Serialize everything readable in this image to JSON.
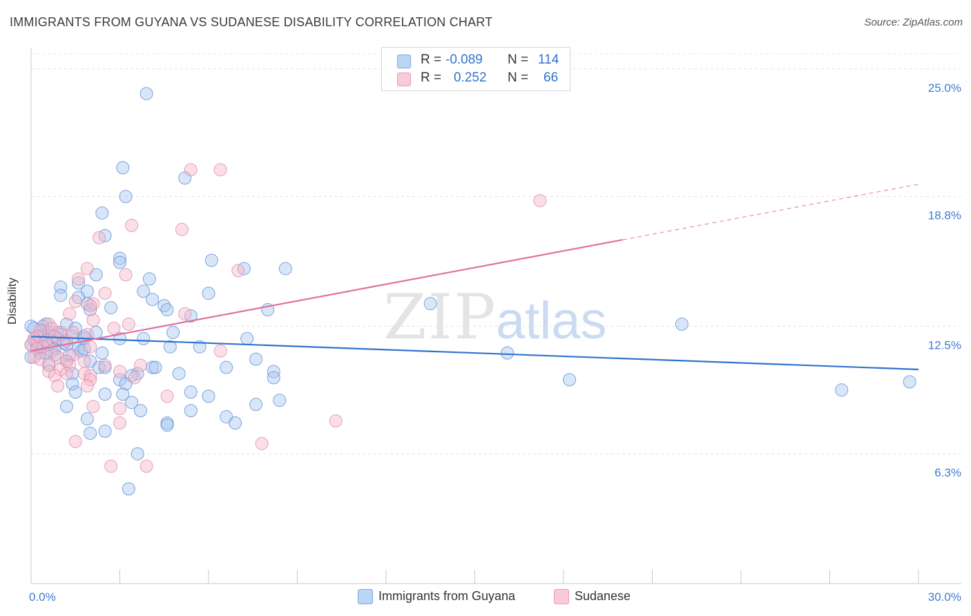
{
  "header": {
    "title": "IMMIGRANTS FROM GUYANA VS SUDANESE DISABILITY CORRELATION CHART",
    "source": "Source: ZipAtlas.com"
  },
  "watermark": {
    "zip": "ZIP",
    "atlas": "atlas"
  },
  "legend": {
    "rows": [
      {
        "r_label": "R =",
        "r_value": "-0.089",
        "n_label": "N =",
        "n_value": "114",
        "color": "#a9c8f0"
      },
      {
        "r_label": "R =",
        "r_value": "0.252",
        "n_label": "N =",
        "n_value": "66",
        "color": "#f5b8cc"
      }
    ]
  },
  "chart_data": {
    "type": "scatter",
    "title": "IMMIGRANTS FROM GUYANA VS SUDANESE DISABILITY CORRELATION CHART",
    "xlabel": "",
    "ylabel": "Disability",
    "xlim": [
      0,
      30
    ],
    "ylim": [
      0,
      26
    ],
    "x_tick_labels": [
      "0.0%",
      "30.0%"
    ],
    "y_ticks": [
      6.3,
      12.5,
      18.8,
      25.0
    ],
    "y_tick_labels": [
      "6.3%",
      "12.5%",
      "18.8%",
      "25.0%"
    ],
    "grid": true,
    "legend_placement": "bottom-center",
    "series": [
      {
        "name": "Immigrants from Guyana",
        "color": "#5b8fd8",
        "fill": "#a9c8f0",
        "trend": {
          "x": [
            0,
            30
          ],
          "y": [
            12.0,
            10.4
          ],
          "color": "#2f72d0"
        },
        "points": [
          [
            3.9,
            23.8
          ],
          [
            3.1,
            20.2
          ],
          [
            5.2,
            19.7
          ],
          [
            3.2,
            18.8
          ],
          [
            2.4,
            18.0
          ],
          [
            2.5,
            16.9
          ],
          [
            3.0,
            15.8
          ],
          [
            6.1,
            15.7
          ],
          [
            3.0,
            15.6
          ],
          [
            7.2,
            15.3
          ],
          [
            8.6,
            15.3
          ],
          [
            2.2,
            15.0
          ],
          [
            4.0,
            14.8
          ],
          [
            1.6,
            14.6
          ],
          [
            1.0,
            14.4
          ],
          [
            1.9,
            14.2
          ],
          [
            3.8,
            14.2
          ],
          [
            6.0,
            14.1
          ],
          [
            1.0,
            14.0
          ],
          [
            1.6,
            13.9
          ],
          [
            4.1,
            13.8
          ],
          [
            1.9,
            13.6
          ],
          [
            4.5,
            13.5
          ],
          [
            2.7,
            13.4
          ],
          [
            4.6,
            13.3
          ],
          [
            8.0,
            13.3
          ],
          [
            2.0,
            13.3
          ],
          [
            5.4,
            13.0
          ],
          [
            0.5,
            12.6
          ],
          [
            1.2,
            12.6
          ],
          [
            0.4,
            12.5
          ],
          [
            0.0,
            12.5
          ],
          [
            1.5,
            12.4
          ],
          [
            22.0,
            12.6
          ],
          [
            13.5,
            13.6
          ],
          [
            2.2,
            12.2
          ],
          [
            4.8,
            12.2
          ],
          [
            0.9,
            12.2
          ],
          [
            0.3,
            12.0
          ],
          [
            1.0,
            12.1
          ],
          [
            0.7,
            12.0
          ],
          [
            1.4,
            12.0
          ],
          [
            1.8,
            12.0
          ],
          [
            3.0,
            11.9
          ],
          [
            3.8,
            11.9
          ],
          [
            7.3,
            11.9
          ],
          [
            0.1,
            11.8
          ],
          [
            0.5,
            11.8
          ],
          [
            0.6,
            11.6
          ],
          [
            1.2,
            11.6
          ],
          [
            0.0,
            11.6
          ],
          [
            0.2,
            11.5
          ],
          [
            0.4,
            11.5
          ],
          [
            4.7,
            11.5
          ],
          [
            5.7,
            11.5
          ],
          [
            0.8,
            11.4
          ],
          [
            1.6,
            11.4
          ],
          [
            1.7,
            11.3
          ],
          [
            1.8,
            11.4
          ],
          [
            0.3,
            11.2
          ],
          [
            2.4,
            11.2
          ],
          [
            0.8,
            11.1
          ],
          [
            0.0,
            11.0
          ],
          [
            16.1,
            11.2
          ],
          [
            7.6,
            10.9
          ],
          [
            2.0,
            10.8
          ],
          [
            1.2,
            10.8
          ],
          [
            0.6,
            10.6
          ],
          [
            2.3,
            10.5
          ],
          [
            4.1,
            10.5
          ],
          [
            4.2,
            10.5
          ],
          [
            6.6,
            10.5
          ],
          [
            8.2,
            10.3
          ],
          [
            3.6,
            10.2
          ],
          [
            5.0,
            10.2
          ],
          [
            3.4,
            10.1
          ],
          [
            1.4,
            10.2
          ],
          [
            8.2,
            10.0
          ],
          [
            3.0,
            9.9
          ],
          [
            18.2,
            9.9
          ],
          [
            29.7,
            9.8
          ],
          [
            1.4,
            9.7
          ],
          [
            3.2,
            9.7
          ],
          [
            1.5,
            9.3
          ],
          [
            2.5,
            9.2
          ],
          [
            5.4,
            9.3
          ],
          [
            6.0,
            9.1
          ],
          [
            8.4,
            8.9
          ],
          [
            3.4,
            8.8
          ],
          [
            7.6,
            8.7
          ],
          [
            1.2,
            8.6
          ],
          [
            5.4,
            8.4
          ],
          [
            3.7,
            8.4
          ],
          [
            1.9,
            8.0
          ],
          [
            6.6,
            8.1
          ],
          [
            6.9,
            7.8
          ],
          [
            4.6,
            7.8
          ],
          [
            4.6,
            7.7
          ],
          [
            2.5,
            7.4
          ],
          [
            2.0,
            7.3
          ],
          [
            3.6,
            6.3
          ],
          [
            3.3,
            4.6
          ],
          [
            27.4,
            9.4
          ],
          [
            3.1,
            9.2
          ],
          [
            2.5,
            10.5
          ],
          [
            0.9,
            11.9
          ],
          [
            1.1,
            11.7
          ],
          [
            0.2,
            11.7
          ],
          [
            0.5,
            11.2
          ],
          [
            1.8,
            11.9
          ],
          [
            0.4,
            12.3
          ],
          [
            0.1,
            12.4
          ],
          [
            0.6,
            12.2
          ],
          [
            1.3,
            11.1
          ]
        ]
      },
      {
        "name": "Sudanese",
        "color": "#e08aa8",
        "fill": "#f5b8cc",
        "trend": {
          "x": [
            0,
            20
          ],
          "y": [
            11.3,
            16.7
          ],
          "color": "#e0709a",
          "dashed_extension": {
            "x": [
              20,
              30
            ],
            "y": [
              16.7,
              19.4
            ]
          }
        },
        "points": [
          [
            5.4,
            20.1
          ],
          [
            6.4,
            20.1
          ],
          [
            17.2,
            18.6
          ],
          [
            3.4,
            17.4
          ],
          [
            5.1,
            17.2
          ],
          [
            2.3,
            16.8
          ],
          [
            1.9,
            15.3
          ],
          [
            7.0,
            15.2
          ],
          [
            3.2,
            15.0
          ],
          [
            1.6,
            14.8
          ],
          [
            2.5,
            14.1
          ],
          [
            1.5,
            13.7
          ],
          [
            2.1,
            13.6
          ],
          [
            2.0,
            13.5
          ],
          [
            1.3,
            13.1
          ],
          [
            5.2,
            13.1
          ],
          [
            2.1,
            12.8
          ],
          [
            3.3,
            12.6
          ],
          [
            0.6,
            12.6
          ],
          [
            2.8,
            12.4
          ],
          [
            0.7,
            12.4
          ],
          [
            0.3,
            12.3
          ],
          [
            1.0,
            12.2
          ],
          [
            1.9,
            12.1
          ],
          [
            0.2,
            12.0
          ],
          [
            0.8,
            12.0
          ],
          [
            0.1,
            11.9
          ],
          [
            1.2,
            11.8
          ],
          [
            0.5,
            11.8
          ],
          [
            0.0,
            11.6
          ],
          [
            0.4,
            11.5
          ],
          [
            2.0,
            11.5
          ],
          [
            0.2,
            11.4
          ],
          [
            0.7,
            11.3
          ],
          [
            6.4,
            11.3
          ],
          [
            1.4,
            11.1
          ],
          [
            0.1,
            11.0
          ],
          [
            0.9,
            11.0
          ],
          [
            0.3,
            10.9
          ],
          [
            1.2,
            10.8
          ],
          [
            1.8,
            10.8
          ],
          [
            0.6,
            10.7
          ],
          [
            1.3,
            10.6
          ],
          [
            2.5,
            10.6
          ],
          [
            3.7,
            10.6
          ],
          [
            1.0,
            10.4
          ],
          [
            3.0,
            10.3
          ],
          [
            0.6,
            10.3
          ],
          [
            1.2,
            10.2
          ],
          [
            1.8,
            10.2
          ],
          [
            2.0,
            10.1
          ],
          [
            0.8,
            10.1
          ],
          [
            3.5,
            10.0
          ],
          [
            2.0,
            9.9
          ],
          [
            0.9,
            9.6
          ],
          [
            1.9,
            9.6
          ],
          [
            4.6,
            9.1
          ],
          [
            2.1,
            8.6
          ],
          [
            3.0,
            8.5
          ],
          [
            10.3,
            7.9
          ],
          [
            3.0,
            7.8
          ],
          [
            1.5,
            6.9
          ],
          [
            7.8,
            6.8
          ],
          [
            2.7,
            5.7
          ],
          [
            3.9,
            5.7
          ],
          [
            1.4,
            12.2
          ]
        ]
      }
    ]
  }
}
